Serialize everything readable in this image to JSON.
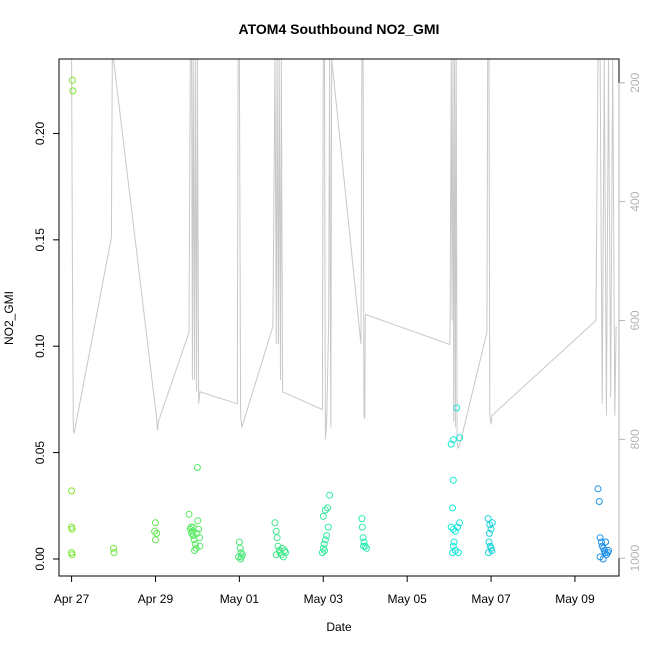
{
  "chart_data": {
    "type": "scatter",
    "title": "ATOM4 Southbound NO2_GMI",
    "xlabel": "Date",
    "ylabel": "NO2_GMI",
    "xlim": [
      -0.3,
      13.05
    ],
    "ylim": [
      -0.008,
      0.235
    ],
    "y2lim": [
      1030,
      160
    ],
    "x_ticks": [
      {
        "value": 0,
        "label": "Apr 27"
      },
      {
        "value": 2,
        "label": "Apr 29"
      },
      {
        "value": 4,
        "label": "May 01"
      },
      {
        "value": 6,
        "label": "May 03"
      },
      {
        "value": 8,
        "label": "May 05"
      },
      {
        "value": 10,
        "label": "May 07"
      },
      {
        "value": 12,
        "label": "May 09"
      }
    ],
    "y_ticks": [
      {
        "value": 0.0,
        "label": "0.00"
      },
      {
        "value": 0.05,
        "label": "0.05"
      },
      {
        "value": 0.1,
        "label": "0.10"
      },
      {
        "value": 0.15,
        "label": "0.15"
      },
      {
        "value": 0.2,
        "label": "0.20"
      }
    ],
    "y2_ticks": [
      {
        "value": 200,
        "label": "200"
      },
      {
        "value": 400,
        "label": "400"
      },
      {
        "value": 600,
        "label": "600"
      },
      {
        "value": 800,
        "label": "800"
      },
      {
        "value": 1000,
        "label": "1000"
      }
    ],
    "pressure_trace": [
      [
        0.0,
        160
      ],
      [
        0.02,
        500
      ],
      [
        0.04,
        780
      ],
      [
        0.06,
        790
      ],
      [
        0.95,
        460
      ],
      [
        0.97,
        160
      ],
      [
        1.0,
        160
      ],
      [
        2.02,
        760
      ],
      [
        2.05,
        785
      ],
      [
        2.07,
        770
      ],
      [
        2.8,
        620
      ],
      [
        2.83,
        160
      ],
      [
        2.86,
        160
      ],
      [
        2.88,
        700
      ],
      [
        2.9,
        160
      ],
      [
        2.93,
        700
      ],
      [
        2.95,
        160
      ],
      [
        2.98,
        720
      ],
      [
        3.0,
        160
      ],
      [
        3.03,
        740
      ],
      [
        3.06,
        720
      ],
      [
        3.95,
        740
      ],
      [
        3.97,
        160
      ],
      [
        4.0,
        160
      ],
      [
        4.03,
        760
      ],
      [
        4.06,
        780
      ],
      [
        4.08,
        775
      ],
      [
        4.8,
        610
      ],
      [
        4.85,
        160
      ],
      [
        4.88,
        640
      ],
      [
        4.9,
        160
      ],
      [
        4.93,
        640
      ],
      [
        4.95,
        160
      ],
      [
        4.98,
        700
      ],
      [
        5.0,
        160
      ],
      [
        5.03,
        720
      ],
      [
        5.98,
        750
      ],
      [
        6.0,
        160
      ],
      [
        6.03,
        160
      ],
      [
        6.05,
        800
      ],
      [
        6.08,
        770
      ],
      [
        6.1,
        700
      ],
      [
        6.13,
        600
      ],
      [
        6.15,
        160
      ],
      [
        6.18,
        780
      ],
      [
        6.2,
        160
      ],
      [
        6.9,
        640
      ],
      [
        6.92,
        160
      ],
      [
        6.95,
        160
      ],
      [
        6.97,
        760
      ],
      [
        6.99,
        765
      ],
      [
        7.0,
        600
      ],
      [
        7.01,
        590
      ],
      [
        9.0,
        640
      ],
      [
        9.02,
        640
      ],
      [
        9.05,
        160
      ],
      [
        9.07,
        600
      ],
      [
        9.09,
        160
      ],
      [
        9.11,
        770
      ],
      [
        9.13,
        160
      ],
      [
        9.15,
        780
      ],
      [
        9.17,
        160
      ],
      [
        9.19,
        800
      ],
      [
        9.21,
        815
      ],
      [
        9.25,
        810
      ],
      [
        9.9,
        620
      ],
      [
        9.92,
        160
      ],
      [
        9.95,
        160
      ],
      [
        9.97,
        760
      ],
      [
        10.0,
        775
      ],
      [
        10.02,
        760
      ],
      [
        12.5,
        600
      ],
      [
        12.55,
        160
      ],
      [
        12.6,
        160
      ],
      [
        12.65,
        740
      ],
      [
        12.7,
        160
      ],
      [
        12.75,
        760
      ],
      [
        12.8,
        160
      ],
      [
        12.85,
        730
      ],
      [
        12.9,
        160
      ],
      [
        12.95,
        760
      ],
      [
        12.98,
        610
      ]
    ],
    "series": [
      {
        "name": "NO2_GMI",
        "points": [
          [
            0.02,
            0.225
          ],
          [
            0.03,
            0.22
          ],
          [
            0.0,
            0.032
          ],
          [
            0.0,
            0.015
          ],
          [
            0.01,
            0.014
          ],
          [
            0.0,
            0.003
          ],
          [
            0.01,
            0.002
          ],
          [
            1.0,
            0.005
          ],
          [
            1.01,
            0.003
          ],
          [
            2.0,
            0.017
          ],
          [
            1.98,
            0.013
          ],
          [
            2.03,
            0.012
          ],
          [
            2.0,
            0.009
          ],
          [
            2.8,
            0.021
          ],
          [
            2.85,
            0.015
          ],
          [
            2.88,
            0.013
          ],
          [
            2.9,
            0.011
          ],
          [
            2.92,
            0.009
          ],
          [
            2.95,
            0.007
          ],
          [
            2.97,
            0.005
          ],
          [
            2.99,
            0.012
          ],
          [
            3.0,
            0.043
          ],
          [
            3.01,
            0.018
          ],
          [
            3.03,
            0.014
          ],
          [
            3.05,
            0.01
          ],
          [
            3.06,
            0.006
          ],
          [
            2.83,
            0.014
          ],
          [
            2.86,
            0.012
          ],
          [
            2.9,
            0.015
          ],
          [
            2.93,
            0.004
          ],
          [
            4.0,
            0.008
          ],
          [
            4.02,
            0.005
          ],
          [
            4.04,
            0.003
          ],
          [
            4.05,
            0.001
          ],
          [
            4.07,
            0.002
          ],
          [
            3.98,
            0.001
          ],
          [
            4.03,
            0.0
          ],
          [
            4.85,
            0.017
          ],
          [
            4.88,
            0.013
          ],
          [
            4.9,
            0.01
          ],
          [
            4.92,
            0.006
          ],
          [
            4.95,
            0.004
          ],
          [
            4.97,
            0.003
          ],
          [
            5.0,
            0.002
          ],
          [
            5.02,
            0.005
          ],
          [
            5.05,
            0.001
          ],
          [
            5.08,
            0.004
          ],
          [
            5.1,
            0.003
          ],
          [
            4.88,
            0.002
          ],
          [
            6.0,
            0.02
          ],
          [
            6.05,
            0.023
          ],
          [
            6.1,
            0.024
          ],
          [
            6.15,
            0.03
          ],
          [
            6.12,
            0.015
          ],
          [
            6.08,
            0.011
          ],
          [
            6.05,
            0.009
          ],
          [
            6.02,
            0.007
          ],
          [
            6.0,
            0.005
          ],
          [
            5.98,
            0.003
          ],
          [
            6.03,
            0.004
          ],
          [
            6.92,
            0.019
          ],
          [
            6.93,
            0.015
          ],
          [
            6.95,
            0.01
          ],
          [
            6.97,
            0.008
          ],
          [
            7.0,
            0.006
          ],
          [
            7.03,
            0.005
          ],
          [
            6.96,
            0.006
          ],
          [
            9.05,
            0.054
          ],
          [
            9.1,
            0.056
          ],
          [
            9.18,
            0.071
          ],
          [
            9.25,
            0.057
          ],
          [
            9.1,
            0.037
          ],
          [
            9.08,
            0.024
          ],
          [
            9.05,
            0.015
          ],
          [
            9.1,
            0.014
          ],
          [
            9.15,
            0.013
          ],
          [
            9.2,
            0.015
          ],
          [
            9.25,
            0.017
          ],
          [
            9.12,
            0.008
          ],
          [
            9.1,
            0.006
          ],
          [
            9.08,
            0.003
          ],
          [
            9.15,
            0.004
          ],
          [
            9.22,
            0.003
          ],
          [
            9.93,
            0.019
          ],
          [
            9.97,
            0.016
          ],
          [
            10.0,
            0.014
          ],
          [
            10.03,
            0.017
          ],
          [
            9.96,
            0.012
          ],
          [
            9.95,
            0.008
          ],
          [
            9.98,
            0.006
          ],
          [
            10.0,
            0.005
          ],
          [
            9.94,
            0.003
          ],
          [
            10.02,
            0.004
          ],
          [
            12.55,
            0.033
          ],
          [
            12.58,
            0.027
          ],
          [
            12.6,
            0.01
          ],
          [
            12.63,
            0.008
          ],
          [
            12.65,
            0.006
          ],
          [
            12.68,
            0.005
          ],
          [
            12.7,
            0.004
          ],
          [
            12.72,
            0.003
          ],
          [
            12.75,
            0.002
          ],
          [
            12.78,
            0.003
          ],
          [
            12.6,
            0.001
          ],
          [
            12.67,
            0.0
          ],
          [
            12.8,
            0.004
          ],
          [
            12.73,
            0.008
          ]
        ]
      }
    ],
    "colors": {
      "trace": "#c8c8c8",
      "axis": "#000000",
      "axis2": "#b4b4b4",
      "point_start": "#78e62a",
      "point_mid": "#16ecd8",
      "point_end": "#1d8fe8"
    }
  }
}
